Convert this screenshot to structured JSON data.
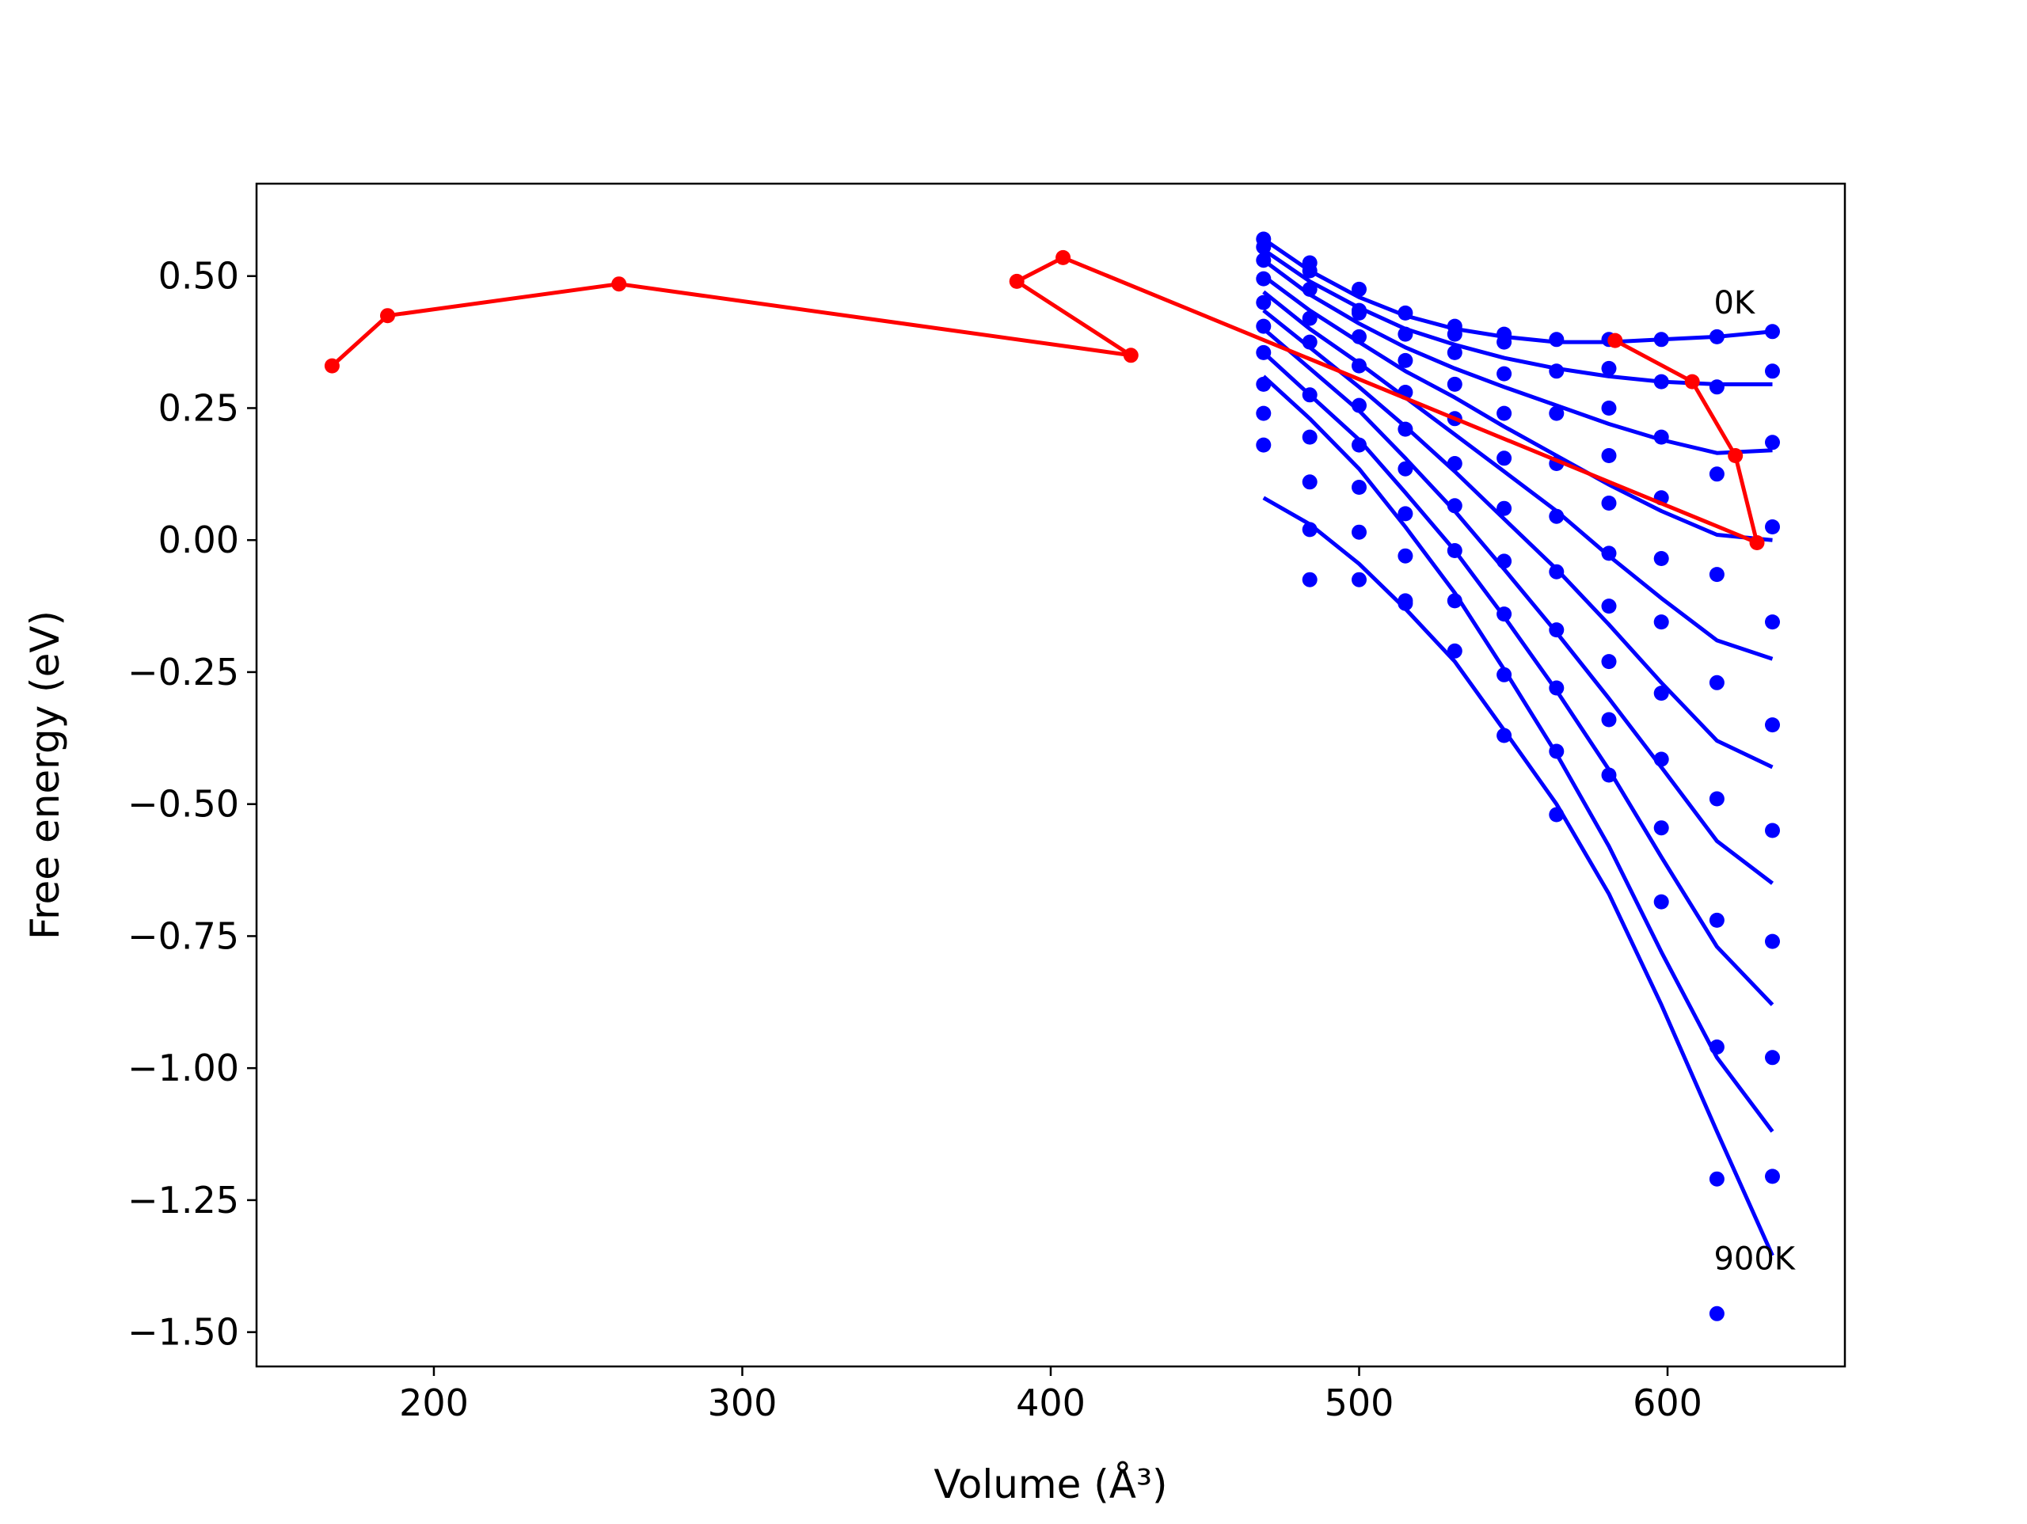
{
  "chart_data": {
    "type": "line",
    "title": "",
    "xlabel": "Volume",
    "xlabel_unit": "(Å³)",
    "ylabel": "Free energy (eV)",
    "xlim": [
      142.5,
      657.5
    ],
    "ylim": [
      -1.565,
      0.675
    ],
    "grid": false,
    "x_ticks": [
      200,
      300,
      400,
      500,
      600
    ],
    "y_ticks": [
      0.5,
      0.25,
      0.0,
      -0.25,
      -0.5,
      -0.75,
      -1.0,
      -1.25,
      -1.5
    ],
    "x_tick_labels": [
      "200",
      "300",
      "400",
      "500",
      "600"
    ],
    "y_tick_labels": [
      "0.50",
      "0.25",
      "0.00",
      "−0.25",
      "−0.50",
      "−0.75",
      "−1.00",
      "−1.25",
      "−1.50"
    ],
    "annotations": [
      {
        "text": "0K",
        "x": 615,
        "y": 0.45
      },
      {
        "text": "900K",
        "x": 615,
        "y": -1.36
      }
    ],
    "volumes": [
      469,
      484,
      500,
      515,
      531,
      547,
      564,
      581,
      598,
      616,
      634
    ],
    "series_points_color": "#0000ff",
    "series_fit_color": "#0000ff",
    "path_color": "#ff0000",
    "points": [
      [
        0.57,
        0.525,
        0.475,
        0.43,
        0.405,
        0.39,
        0.38,
        0.38,
        0.38,
        0.385,
        0.395
      ],
      [
        0.555,
        0.51,
        0.43,
        0.39,
        0.39,
        0.375,
        0.32,
        0.325,
        0.3,
        0.29,
        0.32
      ],
      [
        0.53,
        0.475,
        0.435,
        0.34,
        0.355,
        0.315,
        0.24,
        0.25,
        0.195,
        0.125,
        0.185
      ],
      [
        0.495,
        0.42,
        0.385,
        0.28,
        0.295,
        0.24,
        0.145,
        0.16,
        0.08,
        -0.065,
        0.025
      ],
      [
        0.45,
        0.375,
        0.33,
        0.21,
        0.23,
        0.155,
        0.045,
        0.07,
        -0.035,
        -0.27,
        -0.155
      ],
      [
        0.405,
        0.275,
        0.255,
        0.135,
        0.145,
        0.06,
        -0.06,
        -0.025,
        -0.155,
        -0.49,
        -0.35
      ],
      [
        0.355,
        0.195,
        0.18,
        0.05,
        0.065,
        -0.04,
        -0.17,
        -0.125,
        -0.29,
        -0.72,
        -0.55
      ],
      [
        0.295,
        0.11,
        0.1,
        -0.03,
        -0.02,
        -0.14,
        -0.28,
        -0.23,
        -0.415,
        -0.96,
        -0.76
      ],
      [
        0.24,
        0.02,
        0.015,
        -0.115,
        -0.115,
        -0.255,
        -0.4,
        -0.34,
        -0.545,
        -1.21,
        -0.98
      ],
      [
        0.18,
        -0.075,
        -0.075,
        -0.12,
        -0.21,
        -0.37,
        -0.52,
        -0.445,
        -0.685,
        -1.465,
        -1.205
      ]
    ],
    "fits": [
      [
        0.57,
        0.51,
        0.46,
        0.425,
        0.4,
        0.385,
        0.375,
        0.375,
        0.38,
        0.385,
        0.395
      ],
      [
        0.55,
        0.49,
        0.44,
        0.4,
        0.37,
        0.345,
        0.325,
        0.31,
        0.3,
        0.295,
        0.295
      ],
      [
        0.53,
        0.465,
        0.41,
        0.365,
        0.325,
        0.29,
        0.255,
        0.22,
        0.19,
        0.165,
        0.17
      ],
      [
        0.5,
        0.435,
        0.375,
        0.32,
        0.27,
        0.215,
        0.16,
        0.105,
        0.055,
        0.01,
        0.0
      ],
      [
        0.47,
        0.4,
        0.335,
        0.27,
        0.2,
        0.13,
        0.055,
        -0.03,
        -0.11,
        -0.19,
        -0.225
      ],
      [
        0.435,
        0.365,
        0.29,
        0.215,
        0.13,
        0.04,
        -0.055,
        -0.16,
        -0.27,
        -0.38,
        -0.43
      ],
      [
        0.4,
        0.325,
        0.245,
        0.155,
        0.055,
        -0.055,
        -0.175,
        -0.3,
        -0.43,
        -0.57,
        -0.65
      ],
      [
        0.355,
        0.275,
        0.19,
        0.09,
        -0.02,
        -0.145,
        -0.285,
        -0.435,
        -0.6,
        -0.77,
        -0.88
      ],
      [
        0.31,
        0.23,
        0.135,
        0.025,
        -0.1,
        -0.245,
        -0.405,
        -0.58,
        -0.78,
        -0.98,
        -1.12
      ],
      [
        0.08,
        0.03,
        -0.045,
        -0.13,
        -0.23,
        -0.36,
        -0.5,
        -0.67,
        -0.88,
        -1.12,
        -1.355
      ]
    ],
    "path": {
      "x": [
        167,
        185,
        260,
        426,
        389,
        404,
        629,
        622,
        608,
        583
      ],
      "y": [
        0.33,
        0.425,
        0.485,
        0.35,
        0.49,
        0.535,
        -0.005,
        0.16,
        0.3,
        0.378
      ]
    }
  }
}
